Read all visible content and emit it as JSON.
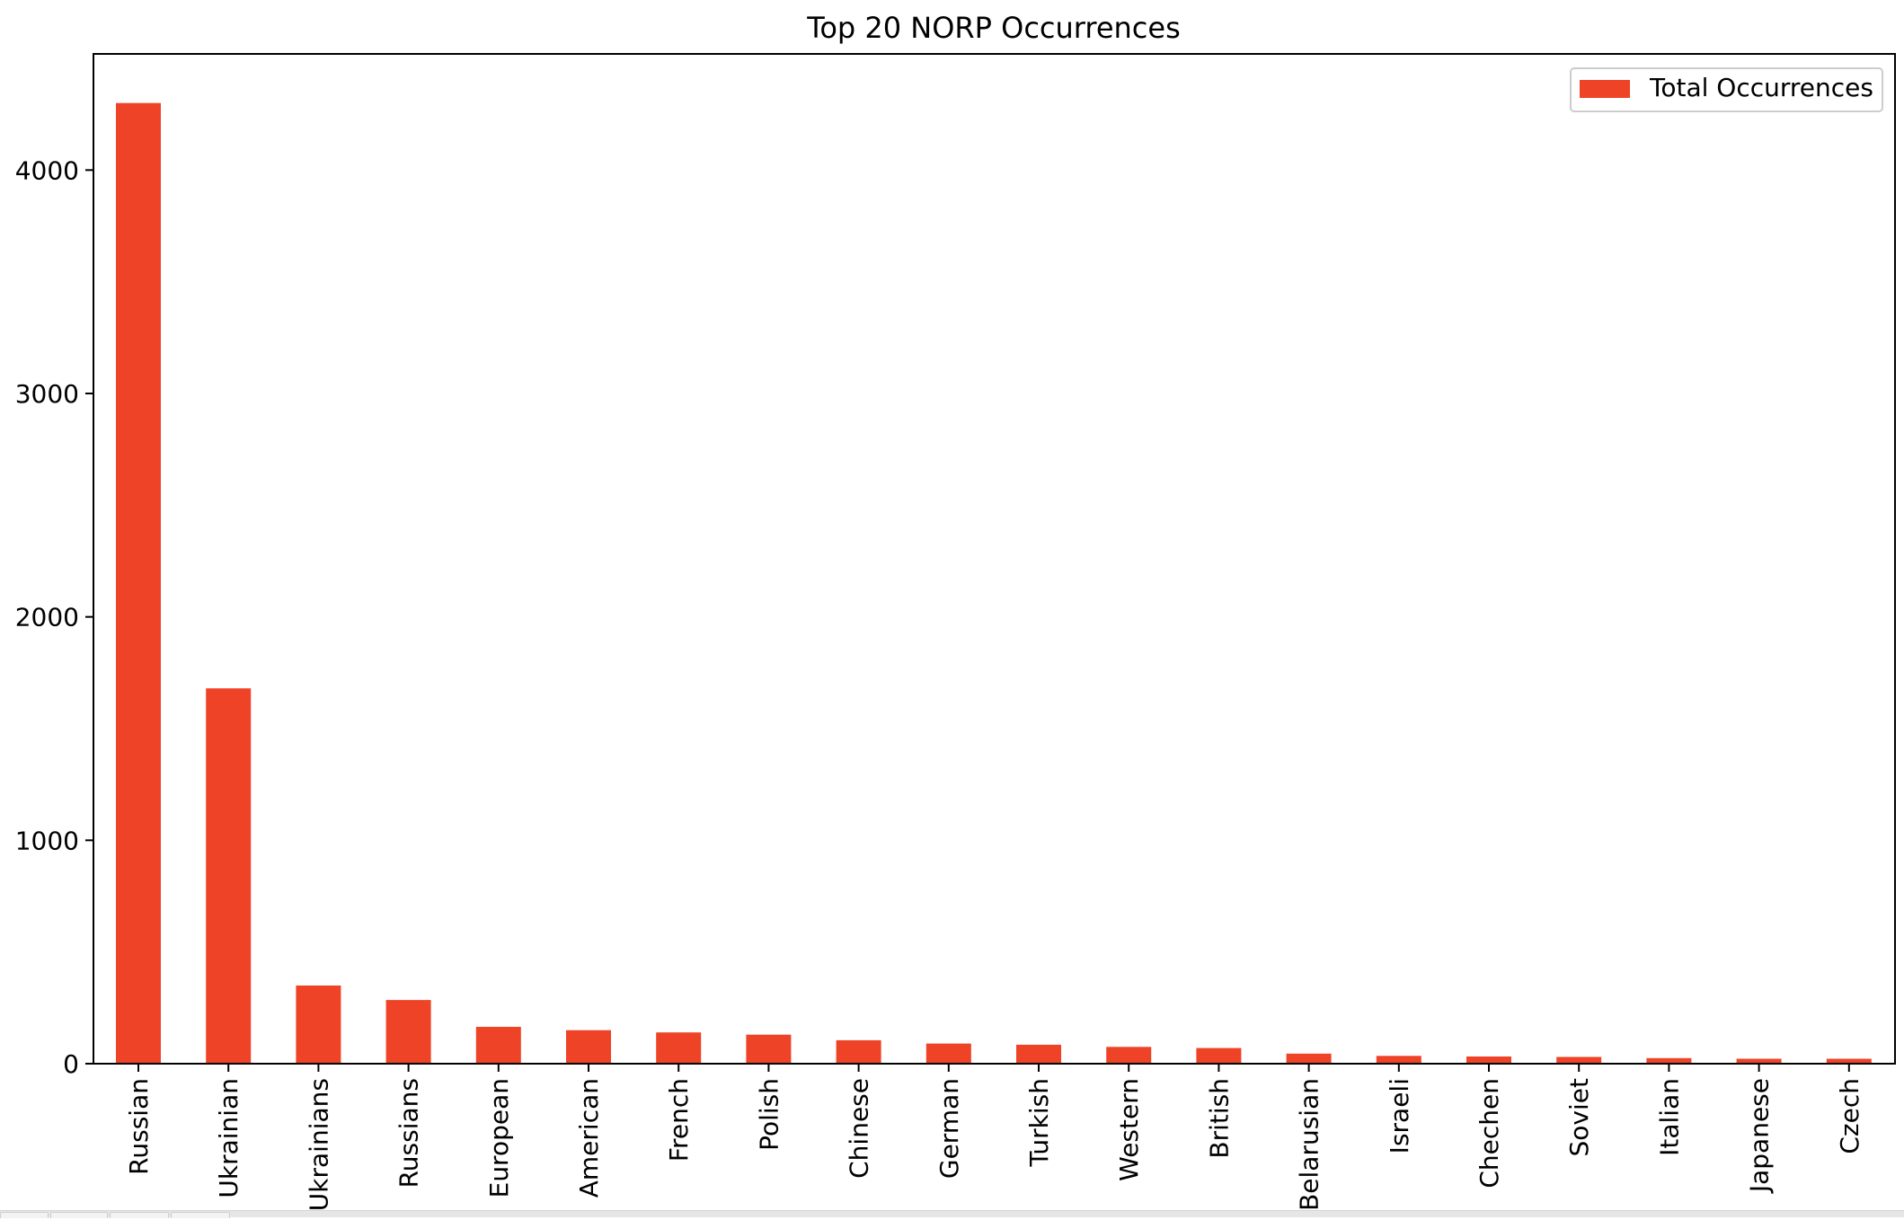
{
  "chart_data": {
    "type": "bar",
    "title": "Top 20 NORP Occurrences",
    "xlabel": "",
    "ylabel": "",
    "categories": [
      "Russian",
      "Ukrainian",
      "Ukrainians",
      "Russians",
      "European",
      "American",
      "French",
      "Polish",
      "Chinese",
      "German",
      "Turkish",
      "Western",
      "British",
      "Belarusian",
      "Israeli",
      "Chechen",
      "Soviet",
      "Italian",
      "Japanese",
      "Czech"
    ],
    "series": [
      {
        "name": "Total Occurrences",
        "values": [
          4300,
          1680,
          350,
          285,
          165,
          150,
          140,
          130,
          105,
          90,
          85,
          75,
          70,
          45,
          35,
          32,
          30,
          25,
          22,
          22
        ],
        "color": "#ee4327"
      }
    ],
    "ylim": [
      0,
      4520
    ],
    "yticks": [
      0,
      1000,
      2000,
      3000,
      4000
    ],
    "grid": false,
    "legend_position": "top-right"
  }
}
